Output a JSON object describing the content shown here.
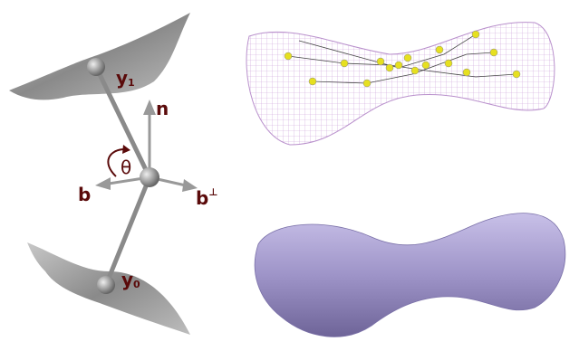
{
  "labels": {
    "y1": {
      "text": "y",
      "sub": "1"
    },
    "n": {
      "text": "n"
    },
    "theta": {
      "text": "θ"
    },
    "b": {
      "text": "b"
    },
    "bperp": {
      "text": "b",
      "sup": "⊥"
    },
    "y0": {
      "text": "y",
      "sub": "0"
    }
  }
}
